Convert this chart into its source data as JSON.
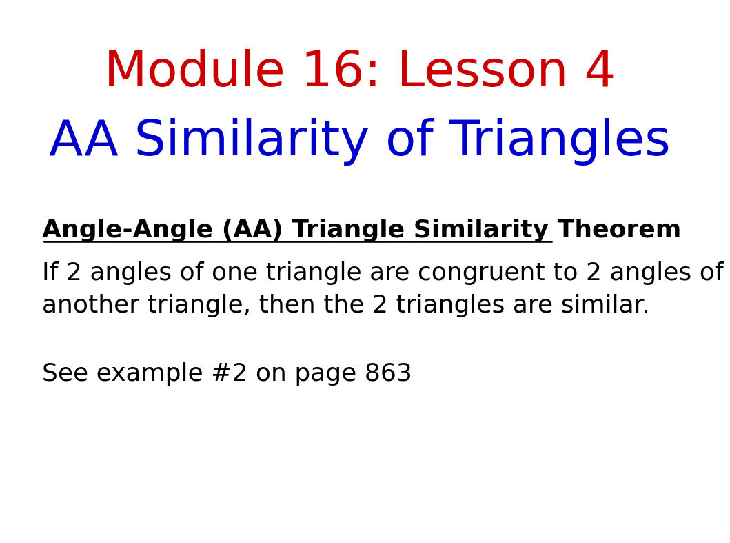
{
  "title_line1": "Module 16: Lesson 4",
  "title_line2": "AA Similarity of Triangles",
  "title_line1_color": "#cc0000",
  "title_line2_color": "#0000cc",
  "title_fontsize": 52,
  "subtitle_fontsize": 52,
  "heading": "Angle-Angle (AA) Triangle Similarity Theorem",
  "heading_color": "#000000",
  "heading_fontsize": 26,
  "body_text": "If 2 angles of one triangle are congruent to 2 angles of\nanother triangle, then the 2 triangles are similar.",
  "body_color": "#000000",
  "body_fontsize": 26,
  "extra_text": "See example #2 on page 863",
  "extra_color": "#000000",
  "extra_fontsize": 26,
  "background_color": "#ffffff"
}
